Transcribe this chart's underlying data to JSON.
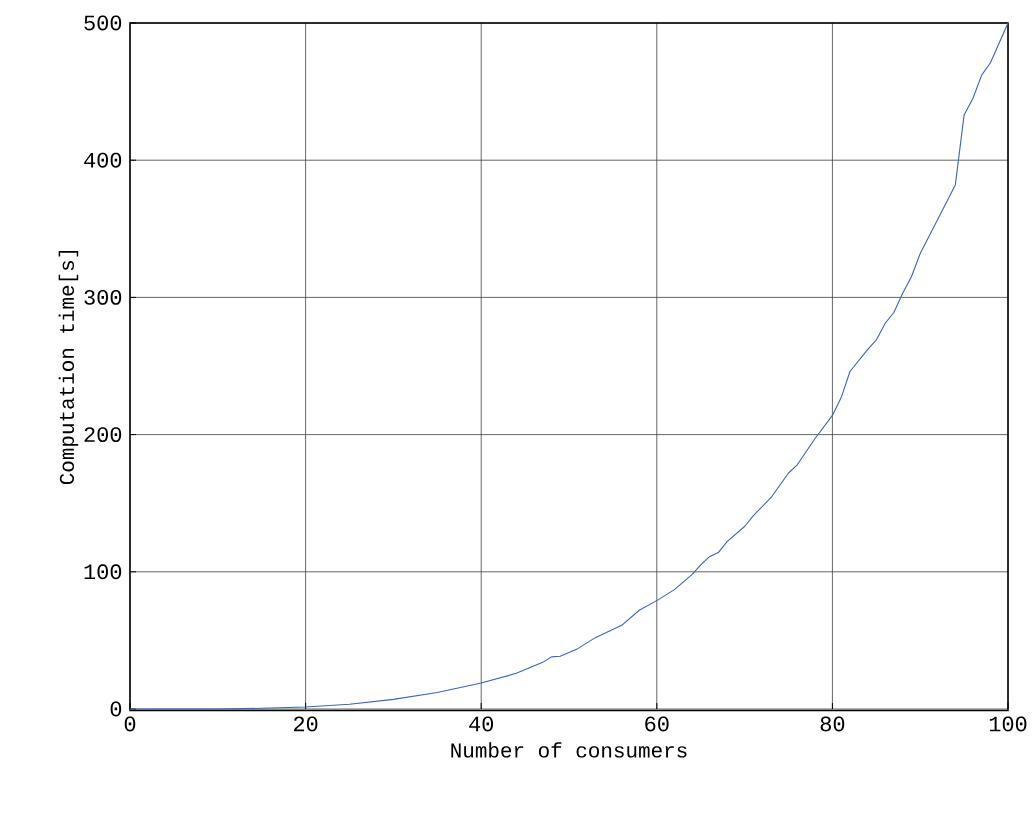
{
  "chart_data": {
    "type": "line",
    "xlabel": "Number of consumers",
    "ylabel": "Computation time[s]",
    "x": [
      0,
      5,
      10,
      15,
      20,
      25,
      30,
      35,
      40,
      44,
      47,
      48,
      49,
      51,
      53,
      56,
      58,
      60,
      62,
      64,
      65,
      66,
      67,
      68,
      70,
      71,
      73,
      75,
      76,
      78,
      80,
      81,
      82,
      84,
      85,
      86,
      87,
      88,
      89,
      90,
      92,
      94,
      95,
      96,
      97,
      98,
      100
    ],
    "values": [
      0,
      0,
      0,
      0.5,
      1.5,
      3.5,
      7,
      12,
      19,
      26,
      34,
      38,
      38.5,
      44,
      52,
      61,
      72,
      79,
      87,
      98,
      105,
      111,
      114,
      122,
      133,
      141,
      154,
      172,
      178,
      197,
      214,
      227,
      246,
      262,
      269,
      281,
      289,
      303,
      315,
      332,
      357,
      382,
      433,
      445,
      462,
      471,
      500
    ],
    "color": "#3a66b5",
    "xlim": [
      0,
      100
    ],
    "ylim": [
      0,
      500
    ],
    "xticks": [
      0,
      20,
      40,
      60,
      80,
      100
    ],
    "yticks": [
      0,
      100,
      200,
      300,
      400,
      500
    ],
    "grid": true,
    "marker": "none",
    "line_style": "solid"
  }
}
